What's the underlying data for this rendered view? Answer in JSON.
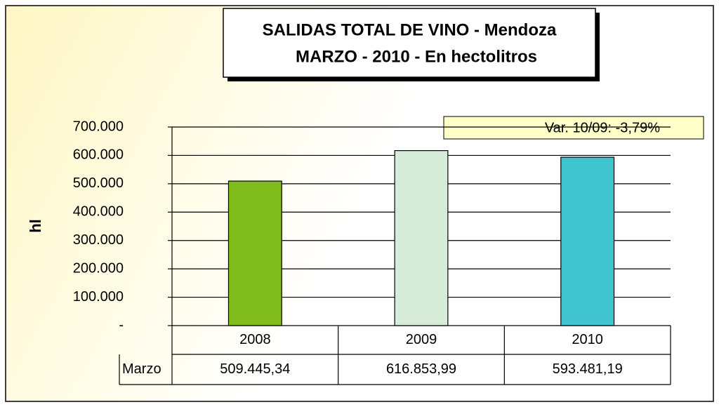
{
  "chart_data": {
    "type": "bar",
    "title": [
      "SALIDAS TOTAL DE VINO - Mendoza",
      "MARZO - 2010 - En hectolitros"
    ],
    "annotation": "Var. 10/09:  -3,79%",
    "y_label": "hl",
    "categories": [
      "2008",
      "2009",
      "2010"
    ],
    "series": [
      {
        "name": "Marzo",
        "colors": [
          "#80bc1c",
          "#d6ecd9",
          "#40c4d0"
        ],
        "values": [
          509445.34,
          616853.99,
          593481.19
        ],
        "value_labels": [
          "509.445,34",
          "616.853,99",
          "593.481,19"
        ]
      }
    ],
    "ylim": [
      0,
      700000
    ],
    "yticks": [
      {
        "value": 0,
        "label": "-"
      },
      {
        "value": 100000,
        "label": "100.000"
      },
      {
        "value": 200000,
        "label": "200.000"
      },
      {
        "value": 300000,
        "label": "300.000"
      },
      {
        "value": 400000,
        "label": "400.000"
      },
      {
        "value": 500000,
        "label": "500.000"
      },
      {
        "value": 600000,
        "label": "600.000"
      },
      {
        "value": 700000,
        "label": "700.000"
      }
    ],
    "grid": true
  }
}
